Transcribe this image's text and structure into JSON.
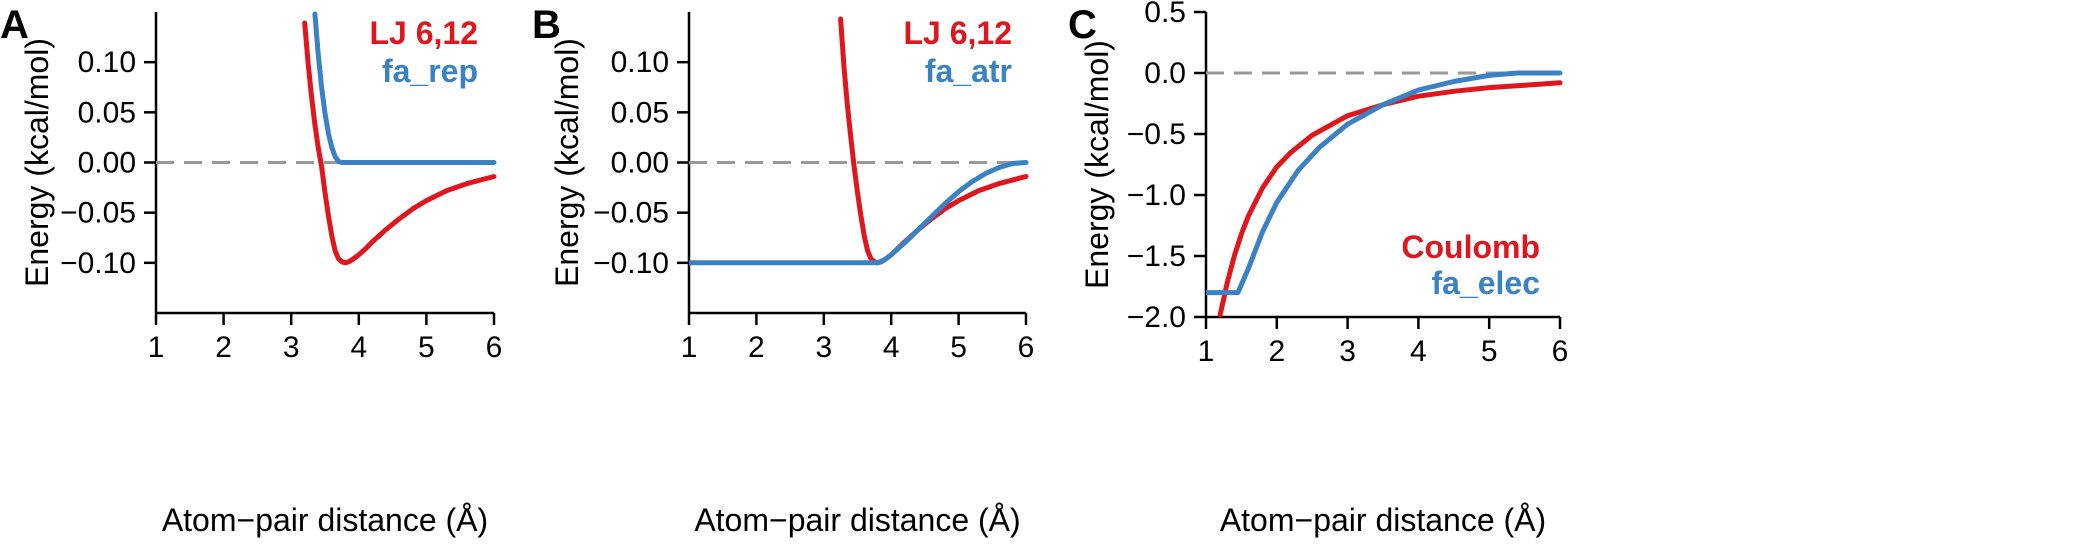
{
  "colors": {
    "red": "#e0161f",
    "blue": "#3a82c4",
    "zero_line": "#999999"
  },
  "chart_data": [
    {
      "type": "line",
      "panel": "A",
      "xlabel": "Atom−pair distance (Å)",
      "ylabel": "Energy (kcal/mol)",
      "xlim": [
        1,
        6
      ],
      "ylim": [
        -0.15,
        0.15
      ],
      "xticks": [
        1,
        2,
        3,
        4,
        5,
        6
      ],
      "yticks": [
        0.1,
        0.05,
        0.0,
        -0.05,
        -0.1
      ],
      "ytick_labels": [
        "0.10",
        "0.05",
        "0.00",
        "−0.05",
        "−0.10"
      ],
      "zero_line": true,
      "legend_position": "top-right",
      "series": [
        {
          "name": "LJ 6,12",
          "color": "#e0161f",
          "x": [
            3.2,
            3.25,
            3.3,
            3.35,
            3.4,
            3.45,
            3.5,
            3.55,
            3.6,
            3.65,
            3.7,
            3.75,
            3.8,
            3.85,
            3.9,
            4.0,
            4.1,
            4.2,
            4.4,
            4.6,
            4.8,
            5.0,
            5.3,
            5.6,
            6.0
          ],
          "y": [
            0.139,
            0.099,
            0.066,
            0.038,
            0.015,
            -0.004,
            -0.03,
            -0.053,
            -0.073,
            -0.088,
            -0.096,
            -0.099,
            -0.1,
            -0.099,
            -0.097,
            -0.092,
            -0.086,
            -0.079,
            -0.067,
            -0.056,
            -0.046,
            -0.038,
            -0.028,
            -0.021,
            -0.014
          ]
        },
        {
          "name": "fa_rep",
          "color": "#3a82c4",
          "x": [
            3.35,
            3.4,
            3.45,
            3.5,
            3.55,
            3.6,
            3.65,
            3.7,
            3.75,
            3.8,
            4.0,
            4.5,
            5.0,
            5.5,
            6.0
          ],
          "y": [
            0.148,
            0.108,
            0.075,
            0.049,
            0.029,
            0.015,
            0.006,
            0.001,
            0.0,
            0.0,
            0.0,
            0.0,
            0.0,
            0.0,
            0.0
          ]
        }
      ]
    },
    {
      "type": "line",
      "panel": "B",
      "xlabel": "Atom−pair distance (Å)",
      "ylabel": "Energy (kcal/mol)",
      "xlim": [
        1,
        6
      ],
      "ylim": [
        -0.15,
        0.15
      ],
      "xticks": [
        1,
        2,
        3,
        4,
        5,
        6
      ],
      "yticks": [
        0.1,
        0.05,
        0.0,
        -0.05,
        -0.1
      ],
      "ytick_labels": [
        "0.10",
        "0.05",
        "0.00",
        "−0.05",
        "−0.10"
      ],
      "zero_line": true,
      "legend_position": "top-right",
      "series": [
        {
          "name": "LJ 6,12",
          "color": "#e0161f",
          "x": [
            3.25,
            3.3,
            3.35,
            3.4,
            3.45,
            3.5,
            3.55,
            3.6,
            3.65,
            3.7,
            3.75,
            3.8,
            3.85,
            3.9,
            4.0,
            4.2,
            4.4,
            4.6,
            4.8,
            5.0,
            5.3,
            5.6,
            6.0
          ],
          "y": [
            0.143,
            0.095,
            0.057,
            0.025,
            -0.004,
            -0.03,
            -0.053,
            -0.073,
            -0.088,
            -0.096,
            -0.099,
            -0.1,
            -0.099,
            -0.097,
            -0.092,
            -0.079,
            -0.067,
            -0.056,
            -0.046,
            -0.038,
            -0.028,
            -0.021,
            -0.014
          ]
        },
        {
          "name": "fa_atr",
          "color": "#3a82c4",
          "x": [
            1.0,
            2.0,
            3.0,
            3.8,
            3.9,
            4.0,
            4.2,
            4.4,
            4.6,
            4.8,
            5.0,
            5.2,
            5.4,
            5.6,
            5.8,
            6.0
          ],
          "y": [
            -0.1,
            -0.1,
            -0.1,
            -0.1,
            -0.097,
            -0.092,
            -0.08,
            -0.067,
            -0.054,
            -0.041,
            -0.029,
            -0.019,
            -0.011,
            -0.005,
            -0.001,
            0.0
          ]
        }
      ]
    },
    {
      "type": "line",
      "panel": "C",
      "xlabel": "Atom−pair distance (Å)",
      "ylabel": "Energy (kcal/mol)",
      "xlim": [
        1,
        6
      ],
      "ylim": [
        -2.0,
        0.5
      ],
      "xticks": [
        1,
        2,
        3,
        4,
        5,
        6
      ],
      "yticks": [
        0.5,
        0.0,
        -0.5,
        -1.0,
        -1.5,
        -2.0
      ],
      "ytick_labels": [
        "0.5",
        "0.0",
        "−0.5",
        "−1.0",
        "−1.5",
        "−2.0"
      ],
      "zero_line": true,
      "legend_position": "bottom-right",
      "series": [
        {
          "name": "Coulomb",
          "color": "#e0161f",
          "x": [
            1.2,
            1.3,
            1.4,
            1.5,
            1.6,
            1.8,
            2.0,
            2.2,
            2.5,
            3.0,
            3.5,
            4.0,
            4.5,
            5.0,
            5.5,
            6.0
          ],
          "y": [
            -1.98,
            -1.72,
            -1.5,
            -1.32,
            -1.17,
            -0.94,
            -0.77,
            -0.65,
            -0.51,
            -0.35,
            -0.26,
            -0.19,
            -0.15,
            -0.12,
            -0.1,
            -0.08
          ]
        },
        {
          "name": "fa_elec",
          "color": "#3a82c4",
          "x": [
            1.0,
            1.2,
            1.45,
            1.6,
            1.8,
            2.0,
            2.3,
            2.6,
            3.0,
            3.5,
            4.0,
            4.5,
            5.0,
            5.4,
            5.6,
            6.0
          ],
          "y": [
            -1.8,
            -1.8,
            -1.8,
            -1.6,
            -1.3,
            -1.06,
            -0.8,
            -0.61,
            -0.42,
            -0.26,
            -0.14,
            -0.07,
            -0.02,
            0.0,
            0.0,
            0.0
          ]
        }
      ]
    }
  ]
}
